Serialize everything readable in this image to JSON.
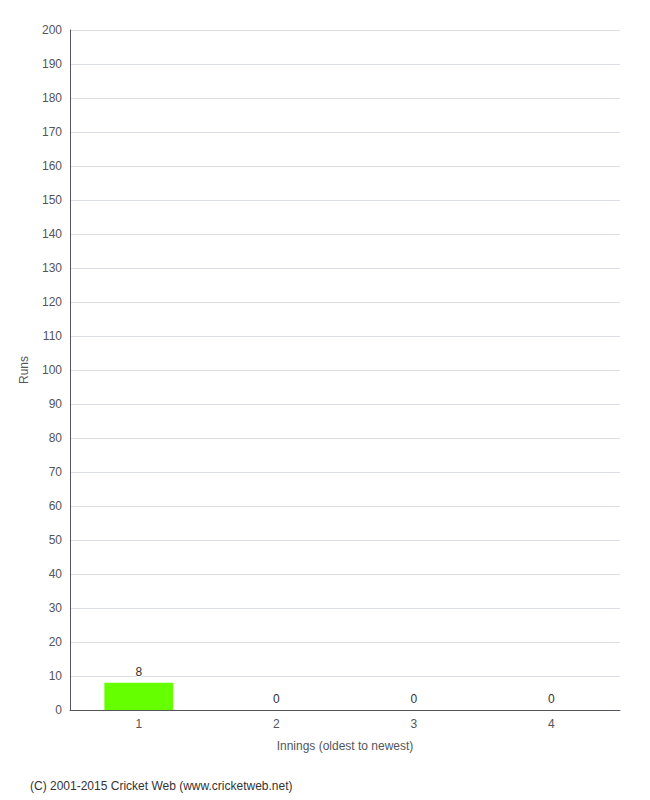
{
  "chart_data": {
    "type": "bar",
    "categories": [
      "1",
      "2",
      "3",
      "4"
    ],
    "values": [
      8,
      0,
      0,
      0
    ],
    "color": "#66ff00",
    "xlabel": "Innings (oldest to newest)",
    "ylabel": "Runs",
    "ylim": [
      0,
      200
    ],
    "yticks": [
      0,
      10,
      20,
      30,
      40,
      50,
      60,
      70,
      80,
      90,
      100,
      110,
      120,
      130,
      140,
      150,
      160,
      170,
      180,
      190,
      200
    ],
    "grid": true,
    "data_labels": true,
    "annotations": [
      "(C) 2001-2015 Cricket Web (www.cricketweb.net)"
    ]
  }
}
